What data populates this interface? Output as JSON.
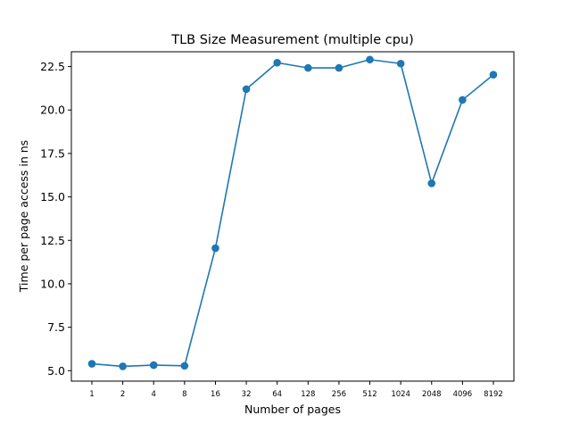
{
  "chart_data": {
    "type": "line",
    "title": "TLB Size Measurement (multiple cpu)",
    "xlabel": "Number of pages",
    "ylabel": "Time per page access in ns",
    "categories": [
      "1",
      "2",
      "4",
      "8",
      "16",
      "32",
      "64",
      "128",
      "256",
      "512",
      "1024",
      "2048",
      "4096",
      "8192"
    ],
    "series": [
      {
        "name": "time per page access",
        "values": [
          5.4,
          5.25,
          5.32,
          5.28,
          12.05,
          21.2,
          22.72,
          22.42,
          22.42,
          22.9,
          22.67,
          15.78,
          20.58,
          22.03
        ],
        "color": "#1f77b4",
        "marker": "circle"
      }
    ],
    "ylim": [
      4.4,
      23.35
    ],
    "yticks": [
      5.0,
      7.5,
      10.0,
      12.5,
      15.0,
      17.5,
      20.0,
      22.5
    ],
    "ytick_labels": [
      "5.0",
      "7.5",
      "10.0",
      "12.5",
      "15.0",
      "17.5",
      "20.0",
      "22.5"
    ],
    "grid": false,
    "legend": "none"
  }
}
